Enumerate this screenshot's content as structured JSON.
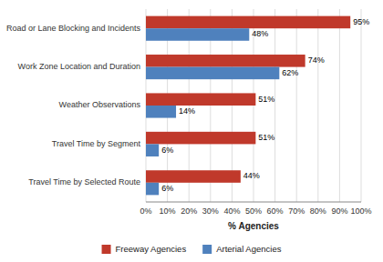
{
  "chart_data": {
    "type": "bar",
    "orientation": "horizontal",
    "categories": [
      "Road or Lane Blocking and Incidents",
      "Work Zone Location and Duration",
      "Weather Observations",
      "Travel Time by Segment",
      "Travel Time by Selected Route"
    ],
    "series": [
      {
        "name": "Freeway Agencies",
        "color": "#c0392b",
        "values": [
          95,
          74,
          51,
          51,
          44
        ],
        "value_labels": [
          "95%",
          "74%",
          "51%",
          "51%",
          "44%"
        ]
      },
      {
        "name": "Arterial Agencies",
        "color": "#4f81bd",
        "values": [
          48,
          62,
          14,
          6,
          6
        ],
        "value_labels": [
          "48%",
          "62%",
          "14%",
          "6%",
          "6%"
        ]
      }
    ],
    "xlabel": "% Agencies",
    "xlim": [
      0,
      100
    ],
    "xticks": [
      {
        "value": 0,
        "label": "0%"
      },
      {
        "value": 10,
        "label": "10%"
      },
      {
        "value": 20,
        "label": "20%"
      },
      {
        "value": 30,
        "label": "30%"
      },
      {
        "value": 40,
        "label": "40%"
      },
      {
        "value": 50,
        "label": "50%"
      },
      {
        "value": 60,
        "label": "60%"
      },
      {
        "value": 70,
        "label": "70%"
      },
      {
        "value": 80,
        "label": "80%"
      },
      {
        "value": 90,
        "label": "90%"
      },
      {
        "value": 100,
        "label": "100%"
      }
    ],
    "grid": true,
    "data_labels": true,
    "legend": "bottom"
  }
}
